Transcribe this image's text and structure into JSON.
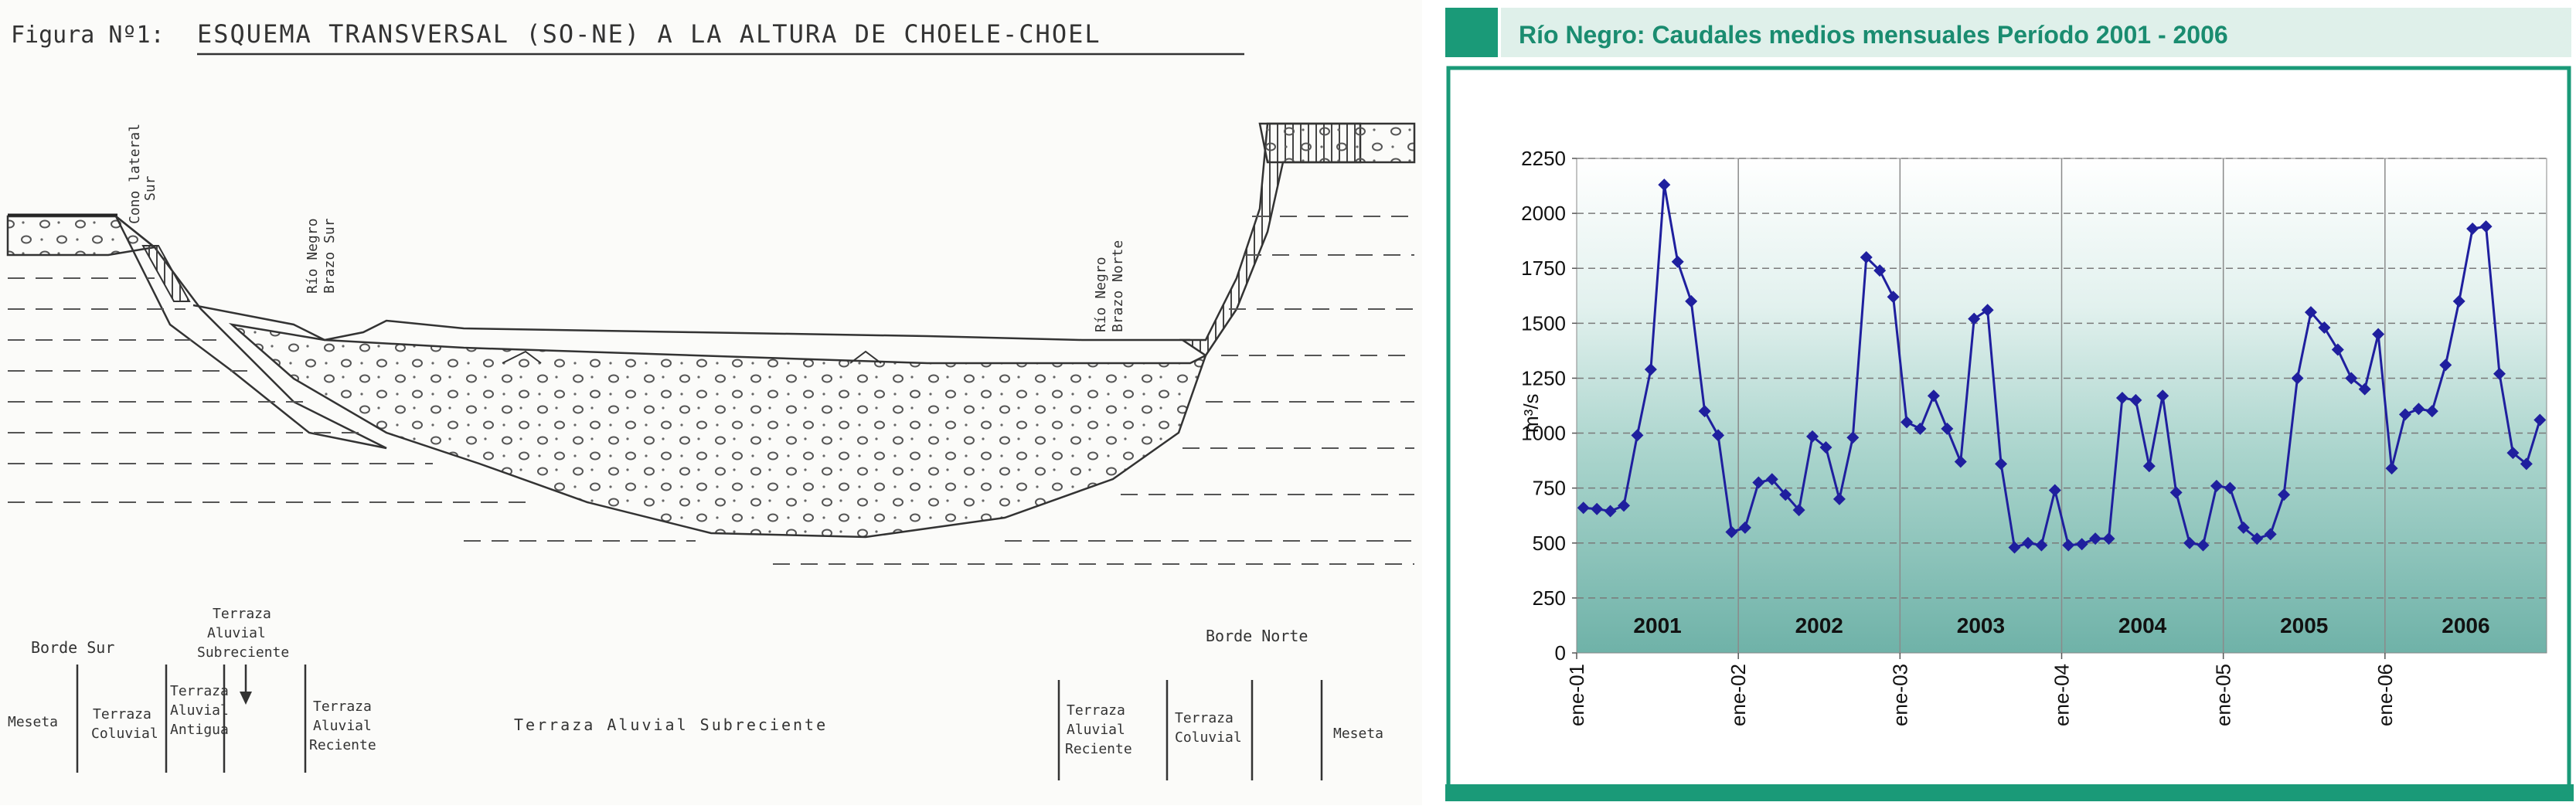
{
  "figure": {
    "title_prefix": "Figura Nº1:",
    "title": "ESQUEMA TRANSVERSAL (SO-NE) A LA ALTURA DE CHOELE-CHOEL",
    "profile_labels": {
      "cono_lateral": [
        "Cono lateral",
        "Sur"
      ],
      "rio_sur": [
        "Río Negro",
        "Brazo Sur"
      ],
      "rio_norte": [
        "Río Negro",
        "Brazo Norte"
      ]
    },
    "bottom_labels": {
      "borde_sur": "Borde Sur",
      "meseta_left": "Meseta",
      "terraza_coluvial_left": [
        "Terraza",
        "Coluvial"
      ],
      "terraza_aluvial_antigua": [
        "Terraza",
        "Aluvial",
        "Antigua"
      ],
      "terraza_aluvial_subreciente_top": [
        "Terraza",
        "Aluvial",
        "Subreciente"
      ],
      "terraza_aluvial_reciente_left": [
        "Terraza",
        "Aluvial",
        "Reciente"
      ],
      "terraza_aluvial_subreciente_center": "Terraza Aluvial Subreciente",
      "terraza_aluvial_reciente_right": [
        "Terraza",
        "Aluvial",
        "Reciente"
      ],
      "terraza_coluvial_right": [
        "Terraza",
        "Coluvial"
      ],
      "borde_norte": "Borde Norte",
      "meseta_right": "Meseta"
    }
  },
  "panel": {
    "title": "Río Negro: Caudales medios mensuales Período 2001 - 2006",
    "accent": "#1a9a78",
    "header_bg": "#dff0ea"
  },
  "chart_data": {
    "type": "line",
    "title": "Río Negro: Caudales medios mensuales Período 2001 - 2006",
    "ylabel": "m³/s",
    "xlabel": "",
    "ylim": [
      0,
      2250
    ],
    "yticks": [
      0,
      250,
      500,
      750,
      1000,
      1250,
      1500,
      1750,
      2000,
      2250
    ],
    "xticks": [
      "ene-01",
      "ene-02",
      "ene-03",
      "ene-04",
      "ene-05",
      "ene-06"
    ],
    "year_labels": [
      "2001",
      "2002",
      "2003",
      "2004",
      "2005",
      "2006"
    ],
    "grid": true,
    "series": [
      {
        "color": "#1f1f9e",
        "values": [
          660,
          655,
          645,
          670,
          990,
          1290,
          2130,
          1780,
          1600,
          1100,
          990,
          550,
          570,
          775,
          790,
          720,
          650,
          985,
          935,
          700,
          980,
          1800,
          1740,
          1620,
          1050,
          1020,
          1170,
          1020,
          870,
          1520,
          1560,
          860,
          480,
          500,
          490,
          740,
          490,
          495,
          520,
          520,
          1160,
          1150,
          850,
          1170,
          730,
          500,
          490,
          760,
          750,
          570,
          520,
          540,
          720,
          1250,
          1550,
          1480,
          1380,
          1250,
          1200,
          1450,
          840,
          1085,
          1110,
          1100,
          1310,
          1600,
          1930,
          1940,
          1270,
          910,
          860,
          1060
        ]
      }
    ]
  }
}
